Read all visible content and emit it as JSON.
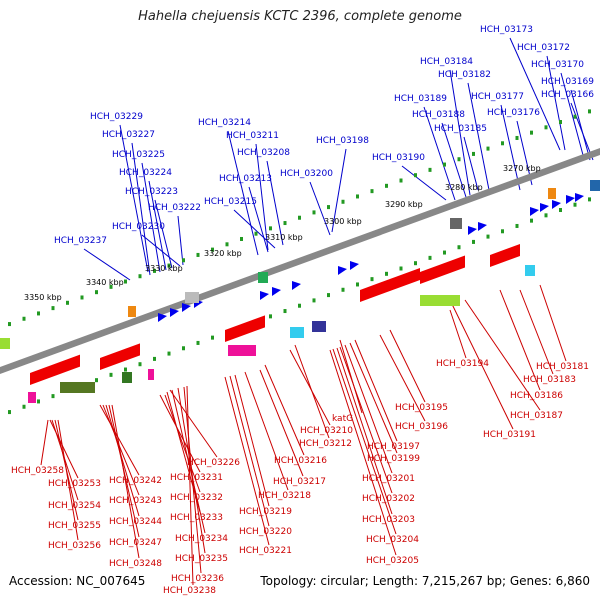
{
  "title": "Hahella chejuensis KCTC 2396, complete genome",
  "footer": {
    "accession": "Accession: NC_007645",
    "topology": "Topology: circular; Length: 7,215,267 bp; Genes: 6,860"
  },
  "colors": {
    "forward_label": "#0000cc",
    "reverse_label": "#cc0000",
    "backbone": "#888888",
    "tick": "#229922"
  },
  "kbp_marks": [
    "3350 kbp",
    "3340 kbp",
    "3330 kbp",
    "3320 kbp",
    "3310 kbp",
    "3300 kbp",
    "3290 kbp",
    "3280 kbp",
    "3270 kbp"
  ],
  "forward_genes": [
    "HCH_03173",
    "HCH_03172",
    "HCH_03184",
    "HCH_03170",
    "HCH_03182",
    "HCH_03169",
    "HCH_03189",
    "HCH_03177",
    "HCH_03166",
    "HCH_03188",
    "HCH_03176",
    "HCH_03185",
    "HCH_03229",
    "HCH_03214",
    "HCH_03227",
    "HCH_03211",
    "HCH_03198",
    "HCH_03225",
    "HCH_03208",
    "HCH_03190",
    "HCH_03224",
    "HCH_03200",
    "HCH_03213",
    "HCH_03223",
    "HCH_03222",
    "HCH_03215",
    "HCH_03230",
    "HCH_03237"
  ],
  "reverse_genes": [
    "HCH_03194",
    "HCH_03181",
    "HCH_03183",
    "HCH_03186",
    "HCH_03195",
    "HCH_03187",
    "katG",
    "HCH_03196",
    "HCH_03210",
    "HCH_03191",
    "HCH_03212",
    "HCH_03197",
    "HCH_03226",
    "HCH_03216",
    "HCH_03199",
    "HCH_03258",
    "HCH_03231",
    "HCH_03217",
    "HCH_03201",
    "HCH_03253",
    "HCH_03242",
    "HCH_03232",
    "HCH_03218",
    "HCH_03202",
    "HCH_03254",
    "HCH_03243",
    "HCH_03219",
    "HCH_03233",
    "HCH_03203",
    "HCH_03255",
    "HCH_03244",
    "HCH_03220",
    "HCH_03234",
    "HCH_03204",
    "HCH_03256",
    "HCH_03247",
    "HCH_03221",
    "HCH_03235",
    "HCH_03205",
    "HCH_03248",
    "HCH_03236",
    "HCH_03238"
  ]
}
